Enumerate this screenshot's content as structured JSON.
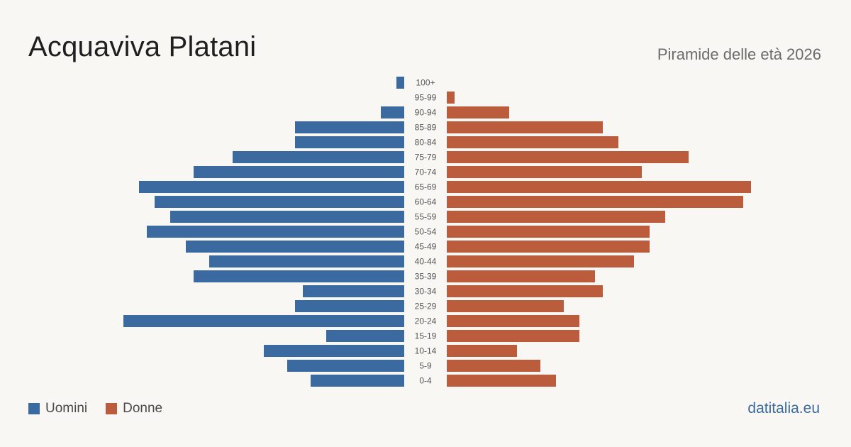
{
  "header": {
    "title": "Acquaviva Platani",
    "subtitle": "Piramide delle età 2026"
  },
  "legend": {
    "men_label": "Uomini",
    "women_label": "Donne"
  },
  "footer": {
    "brand": "datitalia.eu"
  },
  "colors": {
    "men": "#3b6aa0",
    "women": "#bb5d3c",
    "background": "#f9f7f3",
    "label": "#555555"
  },
  "chart_data": {
    "type": "bar",
    "orientation": "horizontal-pyramid",
    "categories": [
      "100+",
      "95-99",
      "90-94",
      "85-89",
      "80-84",
      "75-79",
      "70-74",
      "65-69",
      "60-64",
      "55-59",
      "50-54",
      "45-49",
      "40-44",
      "35-39",
      "30-34",
      "25-29",
      "20-24",
      "15-19",
      "10-14",
      "5-9",
      "0-4"
    ],
    "series": [
      {
        "name": "Uomini",
        "values": [
          1,
          0,
          3,
          14,
          14,
          22,
          27,
          34,
          32,
          30,
          33,
          28,
          25,
          27,
          13,
          14,
          36,
          10,
          18,
          15,
          12
        ]
      },
      {
        "name": "Donne",
        "values": [
          0,
          1,
          8,
          20,
          22,
          31,
          25,
          39,
          38,
          28,
          26,
          26,
          24,
          19,
          20,
          15,
          17,
          17,
          9,
          12,
          14
        ]
      }
    ],
    "max_value": 39
  }
}
